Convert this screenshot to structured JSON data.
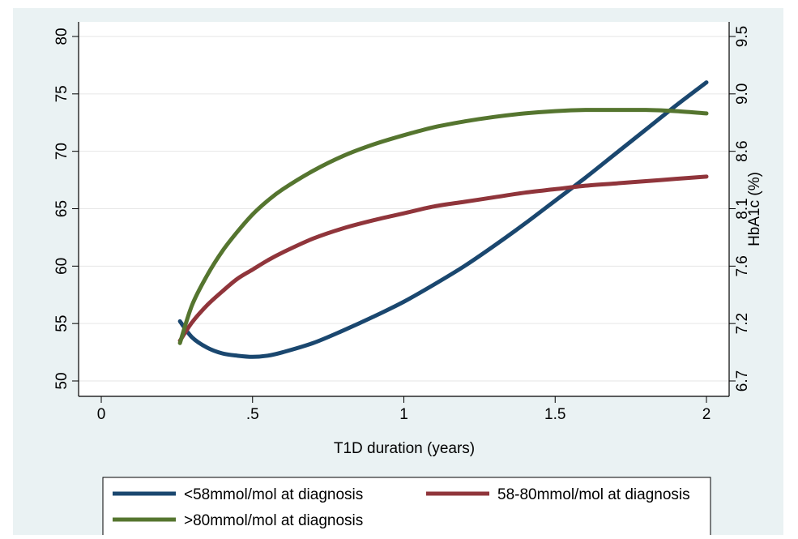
{
  "chart_data": {
    "type": "line",
    "title": "",
    "xlabel": "T1D duration (years)",
    "ylabel_right": "HbA1c (%)",
    "xlim": [
      0,
      2
    ],
    "ylim": [
      50,
      80
    ],
    "x_ticks": [
      {
        "value": 0,
        "label": "0"
      },
      {
        "value": 0.5,
        "label": ".5"
      },
      {
        "value": 1,
        "label": "1"
      },
      {
        "value": 1.5,
        "label": "1.5"
      },
      {
        "value": 2,
        "label": "2"
      }
    ],
    "y_ticks": [
      {
        "value": 50,
        "label": "50"
      },
      {
        "value": 55,
        "label": "55"
      },
      {
        "value": 60,
        "label": "60"
      },
      {
        "value": 65,
        "label": "65"
      },
      {
        "value": 70,
        "label": "70"
      },
      {
        "value": 75,
        "label": "75"
      },
      {
        "value": 80,
        "label": "80"
      }
    ],
    "y2_ticks": [
      {
        "value": 50,
        "label": "6.7"
      },
      {
        "value": 55,
        "label": "7.2"
      },
      {
        "value": 60,
        "label": "7.6"
      },
      {
        "value": 65,
        "label": "8.1"
      },
      {
        "value": 70,
        "label": "8.6"
      },
      {
        "value": 75,
        "label": "9.0"
      },
      {
        "value": 80,
        "label": "9.5"
      }
    ],
    "grid": true,
    "legend_position": "bottom",
    "series": [
      {
        "name": "<58mmol/mol at diagnosis",
        "color": "#1a476f",
        "x": [
          0.26,
          0.3,
          0.35,
          0.4,
          0.45,
          0.5,
          0.55,
          0.6,
          0.7,
          0.8,
          0.9,
          1.0,
          1.1,
          1.2,
          1.3,
          1.4,
          1.5,
          1.6,
          1.7,
          1.8,
          1.9,
          2.0
        ],
        "values": [
          55.2,
          53.8,
          52.9,
          52.4,
          52.2,
          52.1,
          52.2,
          52.5,
          53.3,
          54.4,
          55.6,
          56.9,
          58.4,
          60.0,
          61.8,
          63.7,
          65.7,
          67.7,
          69.8,
          71.9,
          74.0,
          76.0
        ]
      },
      {
        "name": "58-80mmol/mol at diagnosis",
        "color": "#90353b",
        "x": [
          0.26,
          0.3,
          0.35,
          0.4,
          0.45,
          0.5,
          0.55,
          0.6,
          0.7,
          0.8,
          0.9,
          1.0,
          1.1,
          1.2,
          1.3,
          1.4,
          1.5,
          1.6,
          1.7,
          1.8,
          1.9,
          2.0
        ],
        "values": [
          53.5,
          55.1,
          56.6,
          57.8,
          58.9,
          59.7,
          60.5,
          61.2,
          62.4,
          63.3,
          64.0,
          64.6,
          65.2,
          65.6,
          66.0,
          66.4,
          66.7,
          67.0,
          67.2,
          67.4,
          67.6,
          67.8
        ]
      },
      {
        "name": ">80mmol/mol at diagnosis",
        "color": "#55752f",
        "x": [
          0.26,
          0.3,
          0.35,
          0.4,
          0.45,
          0.5,
          0.55,
          0.6,
          0.7,
          0.8,
          0.9,
          1.0,
          1.1,
          1.2,
          1.3,
          1.4,
          1.5,
          1.6,
          1.7,
          1.8,
          1.9,
          2.0
        ],
        "values": [
          53.3,
          56.6,
          59.2,
          61.3,
          63.0,
          64.5,
          65.7,
          66.7,
          68.3,
          69.6,
          70.6,
          71.4,
          72.1,
          72.6,
          73.0,
          73.3,
          73.5,
          73.6,
          73.6,
          73.6,
          73.5,
          73.3
        ]
      }
    ]
  }
}
